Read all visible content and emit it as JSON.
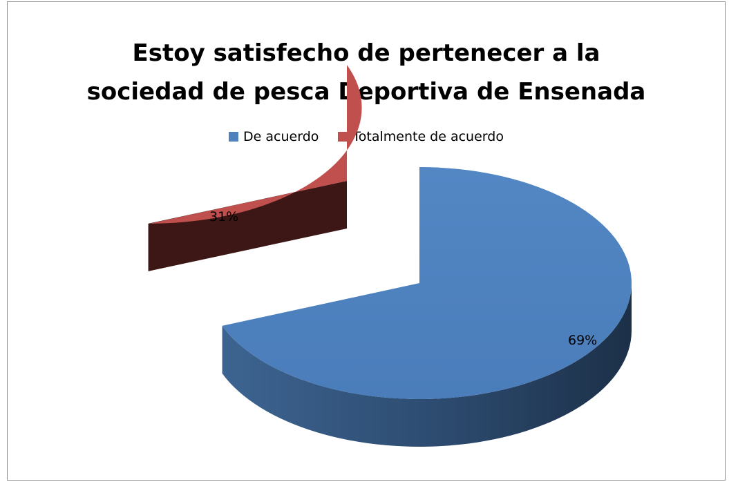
{
  "chart_data": {
    "type": "pie",
    "title_lines": [
      "Estoy satisfecho de pertenecer a la",
      "sociedad de pesca Deportiva de Ensenada"
    ],
    "slices": [
      {
        "name": "De acuerdo",
        "value": 69,
        "label": "69%",
        "color": "#4f81bd",
        "exploded": false
      },
      {
        "name": "Totalmente de acuerdo",
        "value": 31,
        "label": "31%",
        "color": "#c0504d",
        "exploded": true
      }
    ],
    "legend_position": "top",
    "style": "3d-exploded"
  }
}
